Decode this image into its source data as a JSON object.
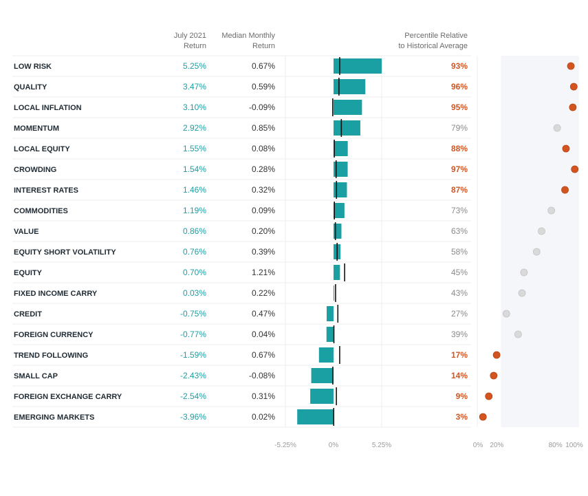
{
  "headers": {
    "july_line1": "July 2021",
    "july_line2": "Return",
    "median_line1": "Median Monthly",
    "median_line2": "Return",
    "pct_line1": "Percentile Relative",
    "pct_line2": "to Historical Average"
  },
  "colors": {
    "bar": "#1a9fa3",
    "high": "#d4541f",
    "low_dot": "#d9d9d9",
    "low_text": "#8a8a8a",
    "shade": "#f4f6f9"
  },
  "chart_data": {
    "type": "bar",
    "orientation": "horizontal",
    "categories": [
      "LOW RISK",
      "QUALITY",
      "LOCAL INFLATION",
      "MOMENTUM",
      "LOCAL EQUITY",
      "CROWDING",
      "INTEREST RATES",
      "COMMODITIES",
      "VALUE",
      "EQUITY SHORT VOLATILITY",
      "EQUITY",
      "FIXED INCOME CARRY",
      "CREDIT",
      "FOREIGN CURRENCY",
      "TREND FOLLOWING",
      "SMALL CAP",
      "FOREIGN EXCHANGE CARRY",
      "EMERGING MARKETS"
    ],
    "july_return": [
      5.25,
      3.47,
      3.1,
      2.92,
      1.55,
      1.54,
      1.46,
      1.19,
      0.86,
      0.76,
      0.7,
      0.03,
      -0.75,
      -0.77,
      -1.59,
      -2.43,
      -2.54,
      -3.96
    ],
    "july_labels": [
      "5.25%",
      "3.47%",
      "3.10%",
      "2.92%",
      "1.55%",
      "1.54%",
      "1.46%",
      "1.19%",
      "0.86%",
      "0.76%",
      "0.70%",
      "0.03%",
      "-0.75%",
      "-0.77%",
      "-1.59%",
      "-2.43%",
      "-2.54%",
      "-3.96%"
    ],
    "median_return": [
      0.67,
      0.59,
      -0.09,
      0.85,
      0.08,
      0.28,
      0.32,
      0.09,
      0.2,
      0.39,
      1.21,
      0.22,
      0.47,
      0.04,
      0.67,
      -0.08,
      0.31,
      0.02
    ],
    "median_labels": [
      "0.67%",
      "0.59%",
      "-0.09%",
      "0.85%",
      "0.08%",
      "0.28%",
      "0.32%",
      "0.09%",
      "0.20%",
      "0.39%",
      "1.21%",
      "0.22%",
      "0.47%",
      "0.04%",
      "0.67%",
      "-0.08%",
      "0.31%",
      "0.02%"
    ],
    "percentile": [
      93,
      96,
      95,
      79,
      88,
      97,
      87,
      73,
      63,
      58,
      45,
      43,
      27,
      39,
      17,
      14,
      9,
      3
    ],
    "percentile_labels": [
      "93%",
      "96%",
      "95%",
      "79%",
      "88%",
      "97%",
      "87%",
      "73%",
      "63%",
      "58%",
      "45%",
      "43%",
      "27%",
      "39%",
      "17%",
      "14%",
      "9%",
      "3%"
    ],
    "bar_axis": {
      "range": [
        -5.25,
        5.25
      ],
      "ticks": [
        "-5.25%",
        "0%",
        "5.25%"
      ],
      "tick_values": [
        -5.25,
        0,
        5.25
      ]
    },
    "percentile_axis": {
      "range": [
        0,
        100
      ],
      "ticks": [
        "0%",
        "20%",
        "80%",
        "100%"
      ],
      "tick_values": [
        0,
        20,
        80,
        100
      ]
    }
  }
}
